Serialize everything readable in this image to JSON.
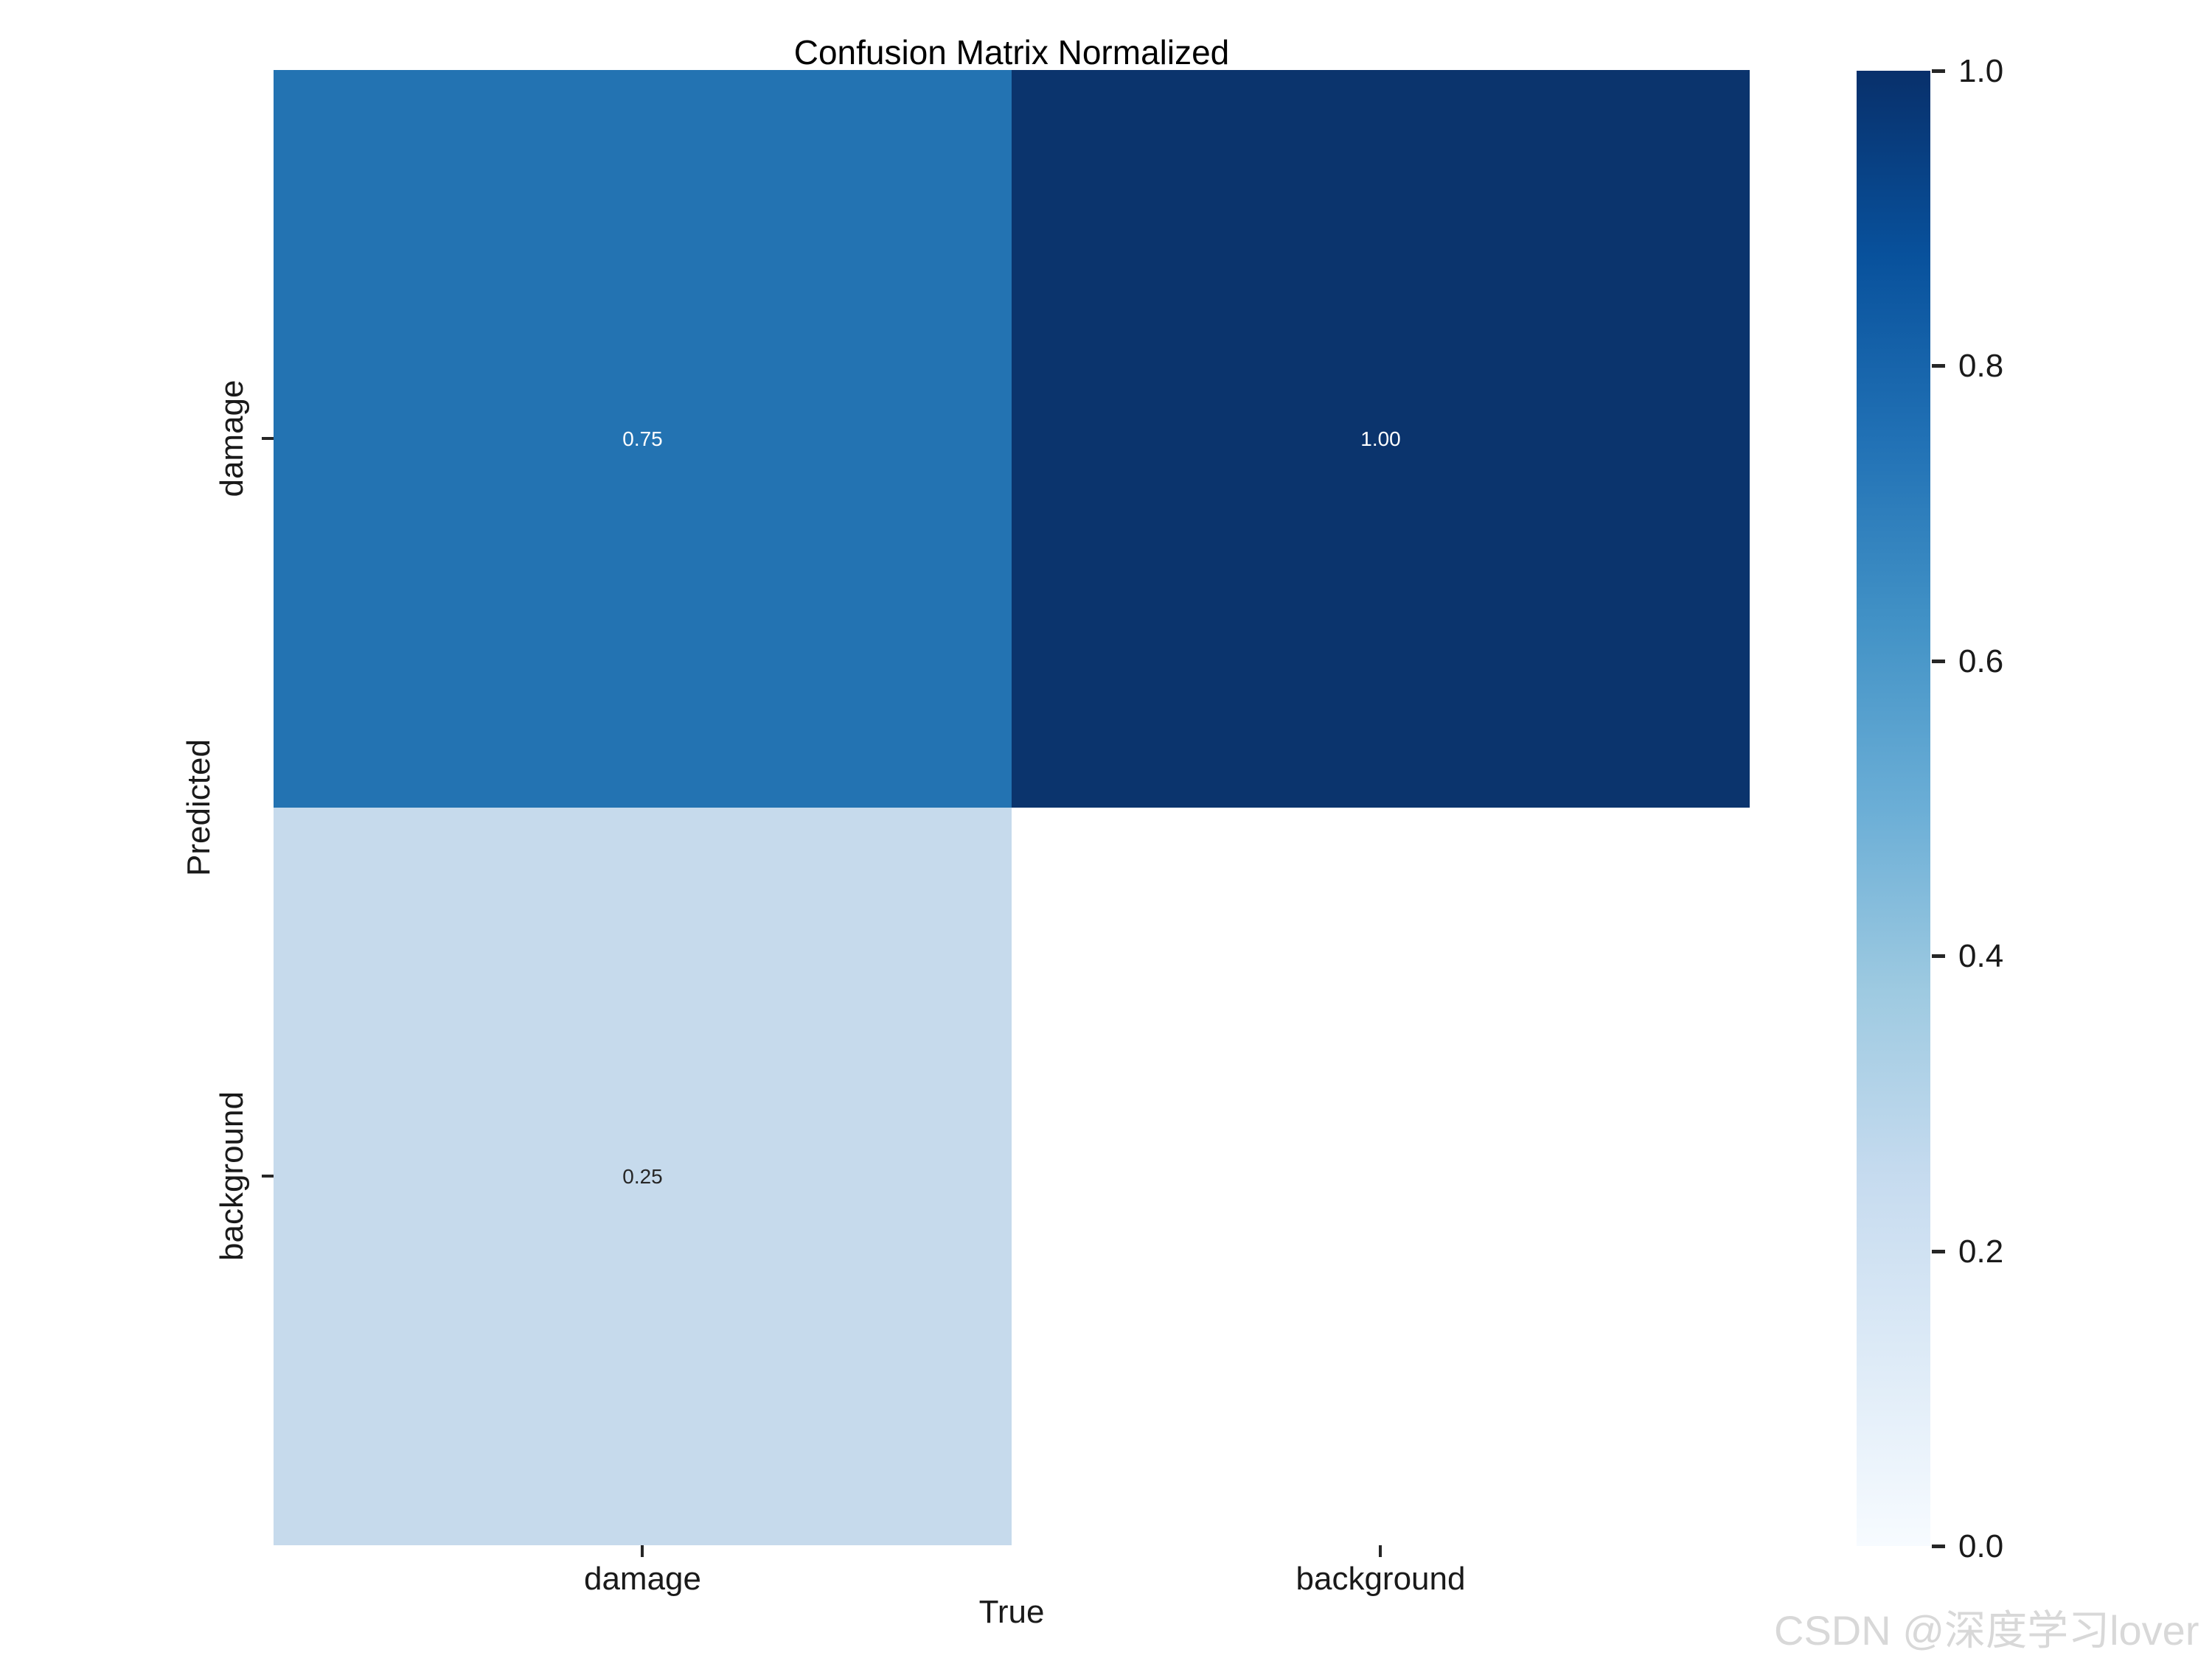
{
  "title": "Confusion Matrix Normalized",
  "axes": {
    "x_label": "True",
    "y_label": "Predicted",
    "x_ticks": [
      "damage",
      "background"
    ],
    "y_ticks": [
      "damage",
      "background"
    ]
  },
  "colorbar": {
    "ticks": [
      "1.0",
      "0.8",
      "0.6",
      "0.4",
      "0.2",
      "0.0"
    ],
    "colormap": "Blues",
    "gradient_top_color": "#08306b",
    "gradient_bottom_color": "#f7fbff"
  },
  "colors": {
    "cell_damage_damage": "#2373b2",
    "cell_damage_background": "#0b346d",
    "cell_background_damage": "#c6daec",
    "cell_background_background": "#ffffff",
    "annotation_light": "#ffffff",
    "annotation_dark": "#262626",
    "tick": "#262626",
    "watermark": "#d8d8d8"
  },
  "watermark": "CSDN @深度学习lover",
  "chart_data": {
    "type": "heatmap",
    "title": "Confusion Matrix Normalized",
    "xlabel": "True",
    "ylabel": "Predicted",
    "x_categories": [
      "damage",
      "background"
    ],
    "y_categories": [
      "damage",
      "background"
    ],
    "values": [
      [
        0.75,
        1.0
      ],
      [
        0.25,
        null
      ]
    ],
    "annotations": [
      [
        "0.75",
        "1.00"
      ],
      [
        "0.25",
        ""
      ]
    ],
    "colormap": "Blues",
    "vmin": 0.0,
    "vmax": 1.0,
    "grid": false,
    "legend_position": "right-colorbar"
  }
}
